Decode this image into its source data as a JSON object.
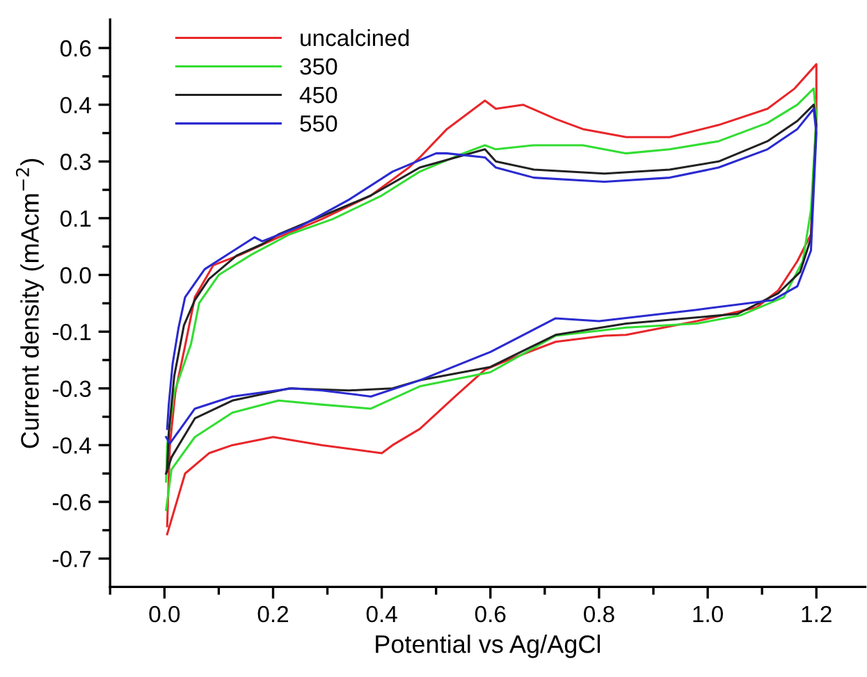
{
  "chart_data": {
    "type": "line",
    "xlabel": "Potential vs Ag/AgCl",
    "ylabel": "Current density (mAcm$^{−2}$)",
    "xlim": [
      -0.1,
      1.29
    ],
    "ylim": [
      -0.77,
      0.63
    ],
    "xticks": [
      {
        "value": 0,
        "label": "0.0"
      },
      0.2,
      0.4,
      0.6,
      0.8,
      {
        "value": 1,
        "label": "1.0"
      },
      1.2
    ],
    "yticks": [
      {
        "value": -0.7,
        "label": "-0.7"
      },
      {
        "value": -0.56,
        "label": "-0.6"
      },
      {
        "value": -0.42,
        "label": "-0.4"
      },
      {
        "value": -0.28,
        "label": "-0.3"
      },
      {
        "value": -0.14,
        "label": "-0.1"
      },
      {
        "value": 0,
        "label": "0.0"
      },
      {
        "value": 0.14,
        "label": "0.1"
      },
      {
        "value": 0.28,
        "label": "0.3"
      },
      {
        "value": 0.42,
        "label": "0.4"
      },
      {
        "value": 0.56,
        "label": "0.6"
      }
    ],
    "grid": false,
    "legend": "top left",
    "marker": "none",
    "line_style": "solid",
    "series": [
      {
        "name": "uncalcined",
        "color": "#e8262a",
        "x": [
          0.005,
          0.01,
          0.02,
          0.038,
          0.056,
          0.09,
          0.14,
          0.21,
          0.29,
          0.38,
          0.45,
          0.47,
          0.52,
          0.59,
          0.61,
          0.66,
          0.72,
          0.77,
          0.85,
          0.93,
          1.02,
          1.11,
          1.16,
          1.2,
          1.2,
          1.19,
          1.165,
          1.13,
          1.09,
          0.98,
          0.85,
          0.81,
          0.72,
          0.64,
          0.59,
          0.535,
          0.47,
          0.42,
          0.4,
          0.29,
          0.2,
          0.125,
          0.082,
          0.038,
          0.005
        ],
        "values": [
          -0.62,
          -0.42,
          -0.29,
          -0.175,
          -0.055,
          0.024,
          0.05,
          0.093,
          0.138,
          0.196,
          0.265,
          0.29,
          0.36,
          0.43,
          0.41,
          0.42,
          0.385,
          0.36,
          0.34,
          0.34,
          0.37,
          0.41,
          0.46,
          0.52,
          0.39,
          0.1,
          0.034,
          -0.038,
          -0.08,
          -0.114,
          -0.148,
          -0.15,
          -0.165,
          -0.206,
          -0.234,
          -0.3,
          -0.38,
          -0.42,
          -0.44,
          -0.42,
          -0.4,
          -0.42,
          -0.44,
          -0.49,
          -0.64
        ]
      },
      {
        "name": "350",
        "color": "#33dd33",
        "x": [
          0.003,
          0.005,
          0.018,
          0.049,
          0.064,
          0.1,
          0.16,
          0.23,
          0.31,
          0.4,
          0.47,
          0.55,
          0.59,
          0.61,
          0.68,
          0.77,
          0.85,
          0.93,
          1.02,
          1.11,
          1.165,
          1.195,
          1.2,
          1.19,
          1.175,
          1.14,
          1.06,
          0.98,
          0.85,
          0.72,
          0.6,
          0.47,
          0.38,
          0.29,
          0.21,
          0.125,
          0.056,
          0.013,
          0.003
        ],
        "values": [
          -0.51,
          -0.42,
          -0.29,
          -0.17,
          -0.069,
          0.0,
          0.05,
          0.1,
          0.138,
          0.196,
          0.255,
          0.3,
          0.32,
          0.31,
          0.32,
          0.32,
          0.3,
          0.31,
          0.33,
          0.375,
          0.42,
          0.46,
          0.39,
          0.16,
          0.034,
          -0.055,
          -0.1,
          -0.12,
          -0.13,
          -0.15,
          -0.24,
          -0.275,
          -0.33,
          -0.32,
          -0.31,
          -0.34,
          -0.4,
          -0.48,
          -0.58
        ]
      },
      {
        "name": "450",
        "color": "#222222",
        "x": [
          0.005,
          0.008,
          0.018,
          0.036,
          0.056,
          0.082,
          0.133,
          0.18,
          0.21,
          0.29,
          0.38,
          0.47,
          0.59,
          0.61,
          0.68,
          0.81,
          0.93,
          1.02,
          1.11,
          1.165,
          1.195,
          1.2,
          1.19,
          1.17,
          1.13,
          1.055,
          0.85,
          0.72,
          0.6,
          0.47,
          0.42,
          0.34,
          0.23,
          0.125,
          0.056,
          0.013,
          0.003
        ],
        "values": [
          -0.485,
          -0.39,
          -0.25,
          -0.124,
          -0.062,
          -0.01,
          0.048,
          0.076,
          0.1,
          0.145,
          0.196,
          0.265,
          0.31,
          0.28,
          0.26,
          0.25,
          0.26,
          0.28,
          0.33,
          0.38,
          0.42,
          0.37,
          0.09,
          0.007,
          -0.045,
          -0.096,
          -0.12,
          -0.148,
          -0.227,
          -0.26,
          -0.28,
          -0.285,
          -0.28,
          -0.31,
          -0.354,
          -0.45,
          -0.49
        ]
      },
      {
        "name": "550",
        "color": "#2a2ad0",
        "x": [
          0.005,
          0.008,
          0.015,
          0.026,
          0.038,
          0.074,
          0.125,
          0.166,
          0.18,
          0.25,
          0.34,
          0.42,
          0.5,
          0.52,
          0.59,
          0.61,
          0.68,
          0.81,
          0.93,
          1.02,
          1.11,
          1.165,
          1.195,
          1.2,
          1.19,
          1.165,
          1.12,
          0.98,
          0.8,
          0.72,
          0.6,
          0.47,
          0.38,
          0.29,
          0.235,
          0.125,
          0.056,
          0.01,
          0.003
        ],
        "values": [
          -0.38,
          -0.32,
          -0.22,
          -0.13,
          -0.055,
          0.014,
          0.058,
          0.093,
          0.083,
          0.12,
          0.186,
          0.255,
          0.3,
          0.3,
          0.29,
          0.265,
          0.24,
          0.23,
          0.24,
          0.265,
          0.31,
          0.36,
          0.41,
          0.35,
          0.06,
          -0.028,
          -0.062,
          -0.086,
          -0.114,
          -0.107,
          -0.19,
          -0.26,
          -0.3,
          -0.285,
          -0.28,
          -0.3,
          -0.33,
          -0.416,
          -0.4
        ]
      }
    ]
  }
}
